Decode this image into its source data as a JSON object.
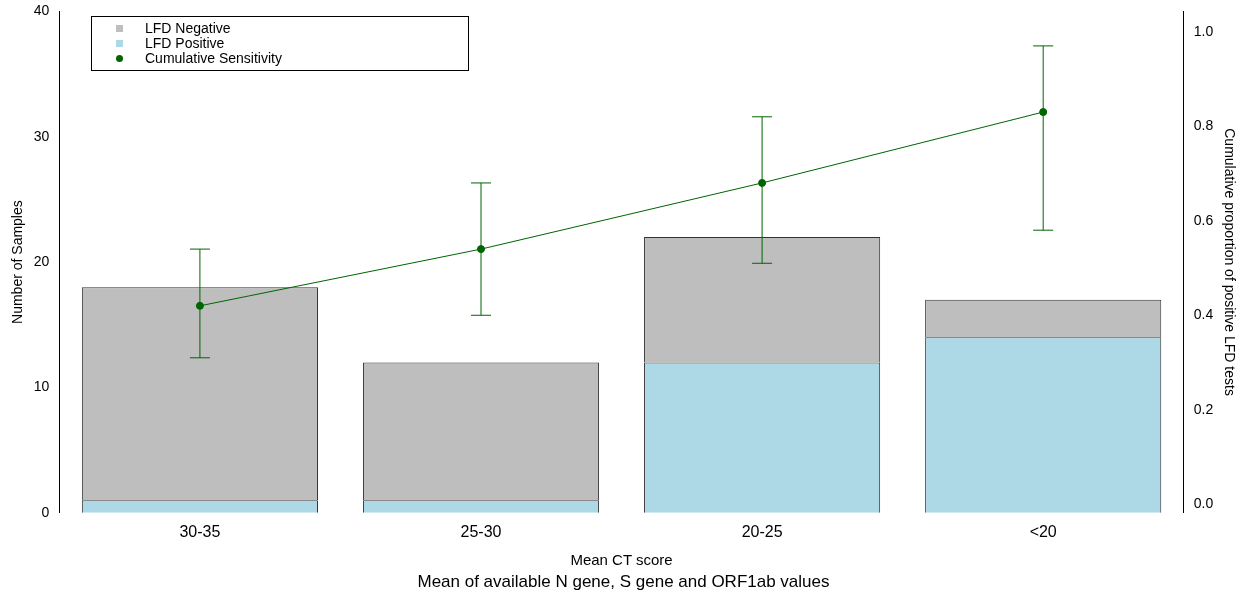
{
  "chart_data": {
    "type": "bar",
    "stacked": true,
    "xlabel": "Mean CT score",
    "ylabel": "Number of Samples",
    "y2label": "Cumulative proportion of positive LFD tests",
    "categories": [
      "30-35",
      "25-30",
      "20-25",
      "<20"
    ],
    "series": [
      {
        "name": "LFD Positive",
        "color": "#add8e6",
        "values": [
          1,
          1,
          12,
          14
        ]
      },
      {
        "name": "LFD Negative",
        "color": "#bebebe",
        "values": [
          17,
          11,
          10,
          3
        ]
      },
      {
        "name": "Cumulative Sensitivity",
        "type": "line",
        "axis": "y2",
        "color": "#006400",
        "values": [
          0.42,
          0.54,
          0.68,
          0.83
        ],
        "errors": [
          [
            0.31,
            0.54
          ],
          [
            0.4,
            0.68
          ],
          [
            0.51,
            0.82
          ],
          [
            0.58,
            0.97
          ]
        ]
      }
    ],
    "ylim": [
      0,
      40
    ],
    "yticks": [
      0,
      10,
      20,
      30,
      40
    ],
    "y2lim": [
      -0.018,
      1.043
    ],
    "y2ticks": [
      {
        "value": 0,
        "label": "0.0"
      },
      {
        "value": 0.2,
        "label": "0.2"
      },
      {
        "value": 0.4,
        "label": "0.4"
      },
      {
        "value": 0.6,
        "label": "0.6"
      },
      {
        "value": 0.8,
        "label": "0.8"
      },
      {
        "value": 1,
        "label": "1.0"
      }
    ],
    "legend": "top left",
    "grid": false,
    "marker": "circle",
    "line_style": "solid",
    "annotations": [
      "Mean of available N gene, S gene and ORF1ab values"
    ]
  }
}
